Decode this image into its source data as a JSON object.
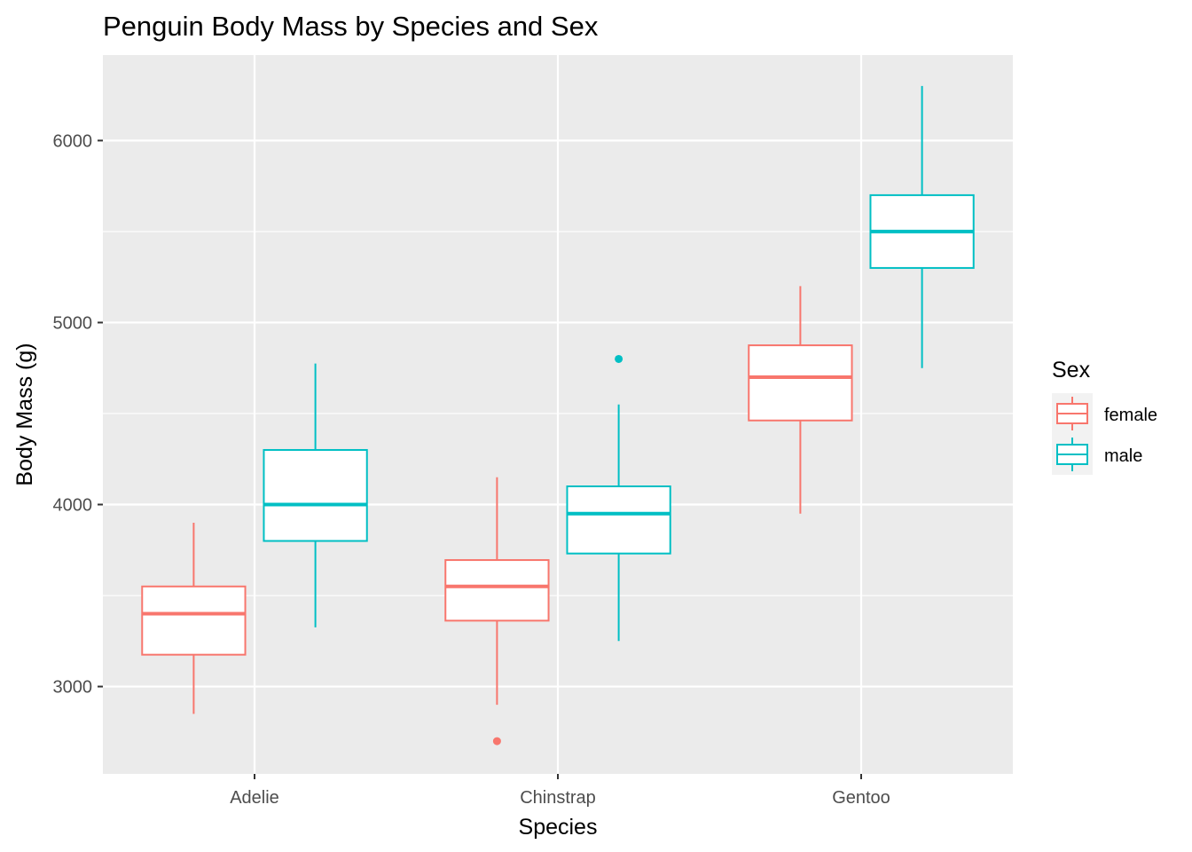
{
  "chart_data": {
    "type": "box",
    "title": "Penguin Body Mass by Species and Sex",
    "xlabel": "Species",
    "ylabel": "Body Mass (g)",
    "categories": [
      "Adelie",
      "Chinstrap",
      "Gentoo"
    ],
    "ylim": [
      2520,
      6470
    ],
    "y_ticks": [
      3000,
      4000,
      5000,
      6000
    ],
    "y_tick_labels": [
      "3000",
      "4000",
      "5000",
      "6000"
    ],
    "y_minor_ticks": [
      3500,
      4500,
      5500
    ],
    "grid": true,
    "legend": {
      "title": "Sex",
      "position": "right"
    },
    "series": [
      {
        "name": "female",
        "color": "#F8766D",
        "boxes": [
          {
            "category": "Adelie",
            "whisker_low": 2850,
            "q1": 3175,
            "median": 3400,
            "q3": 3550,
            "whisker_high": 3900,
            "outliers": []
          },
          {
            "category": "Chinstrap",
            "whisker_low": 2900,
            "q1": 3362,
            "median": 3550,
            "q3": 3695,
            "whisker_high": 4150,
            "outliers": [
              2700
            ]
          },
          {
            "category": "Gentoo",
            "whisker_low": 3950,
            "q1": 4462,
            "median": 4700,
            "q3": 4875,
            "whisker_high": 5200,
            "outliers": []
          }
        ]
      },
      {
        "name": "male",
        "color": "#00BFC4",
        "boxes": [
          {
            "category": "Adelie",
            "whisker_low": 3325,
            "q1": 3800,
            "median": 4000,
            "q3": 4300,
            "whisker_high": 4775,
            "outliers": []
          },
          {
            "category": "Chinstrap",
            "whisker_low": 3250,
            "q1": 3731,
            "median": 3950,
            "q3": 4100,
            "whisker_high": 4550,
            "outliers": [
              4800
            ]
          },
          {
            "category": "Gentoo",
            "whisker_low": 4750,
            "q1": 5300,
            "median": 5500,
            "q3": 5700,
            "whisker_high": 6300,
            "outliers": []
          }
        ]
      }
    ]
  }
}
